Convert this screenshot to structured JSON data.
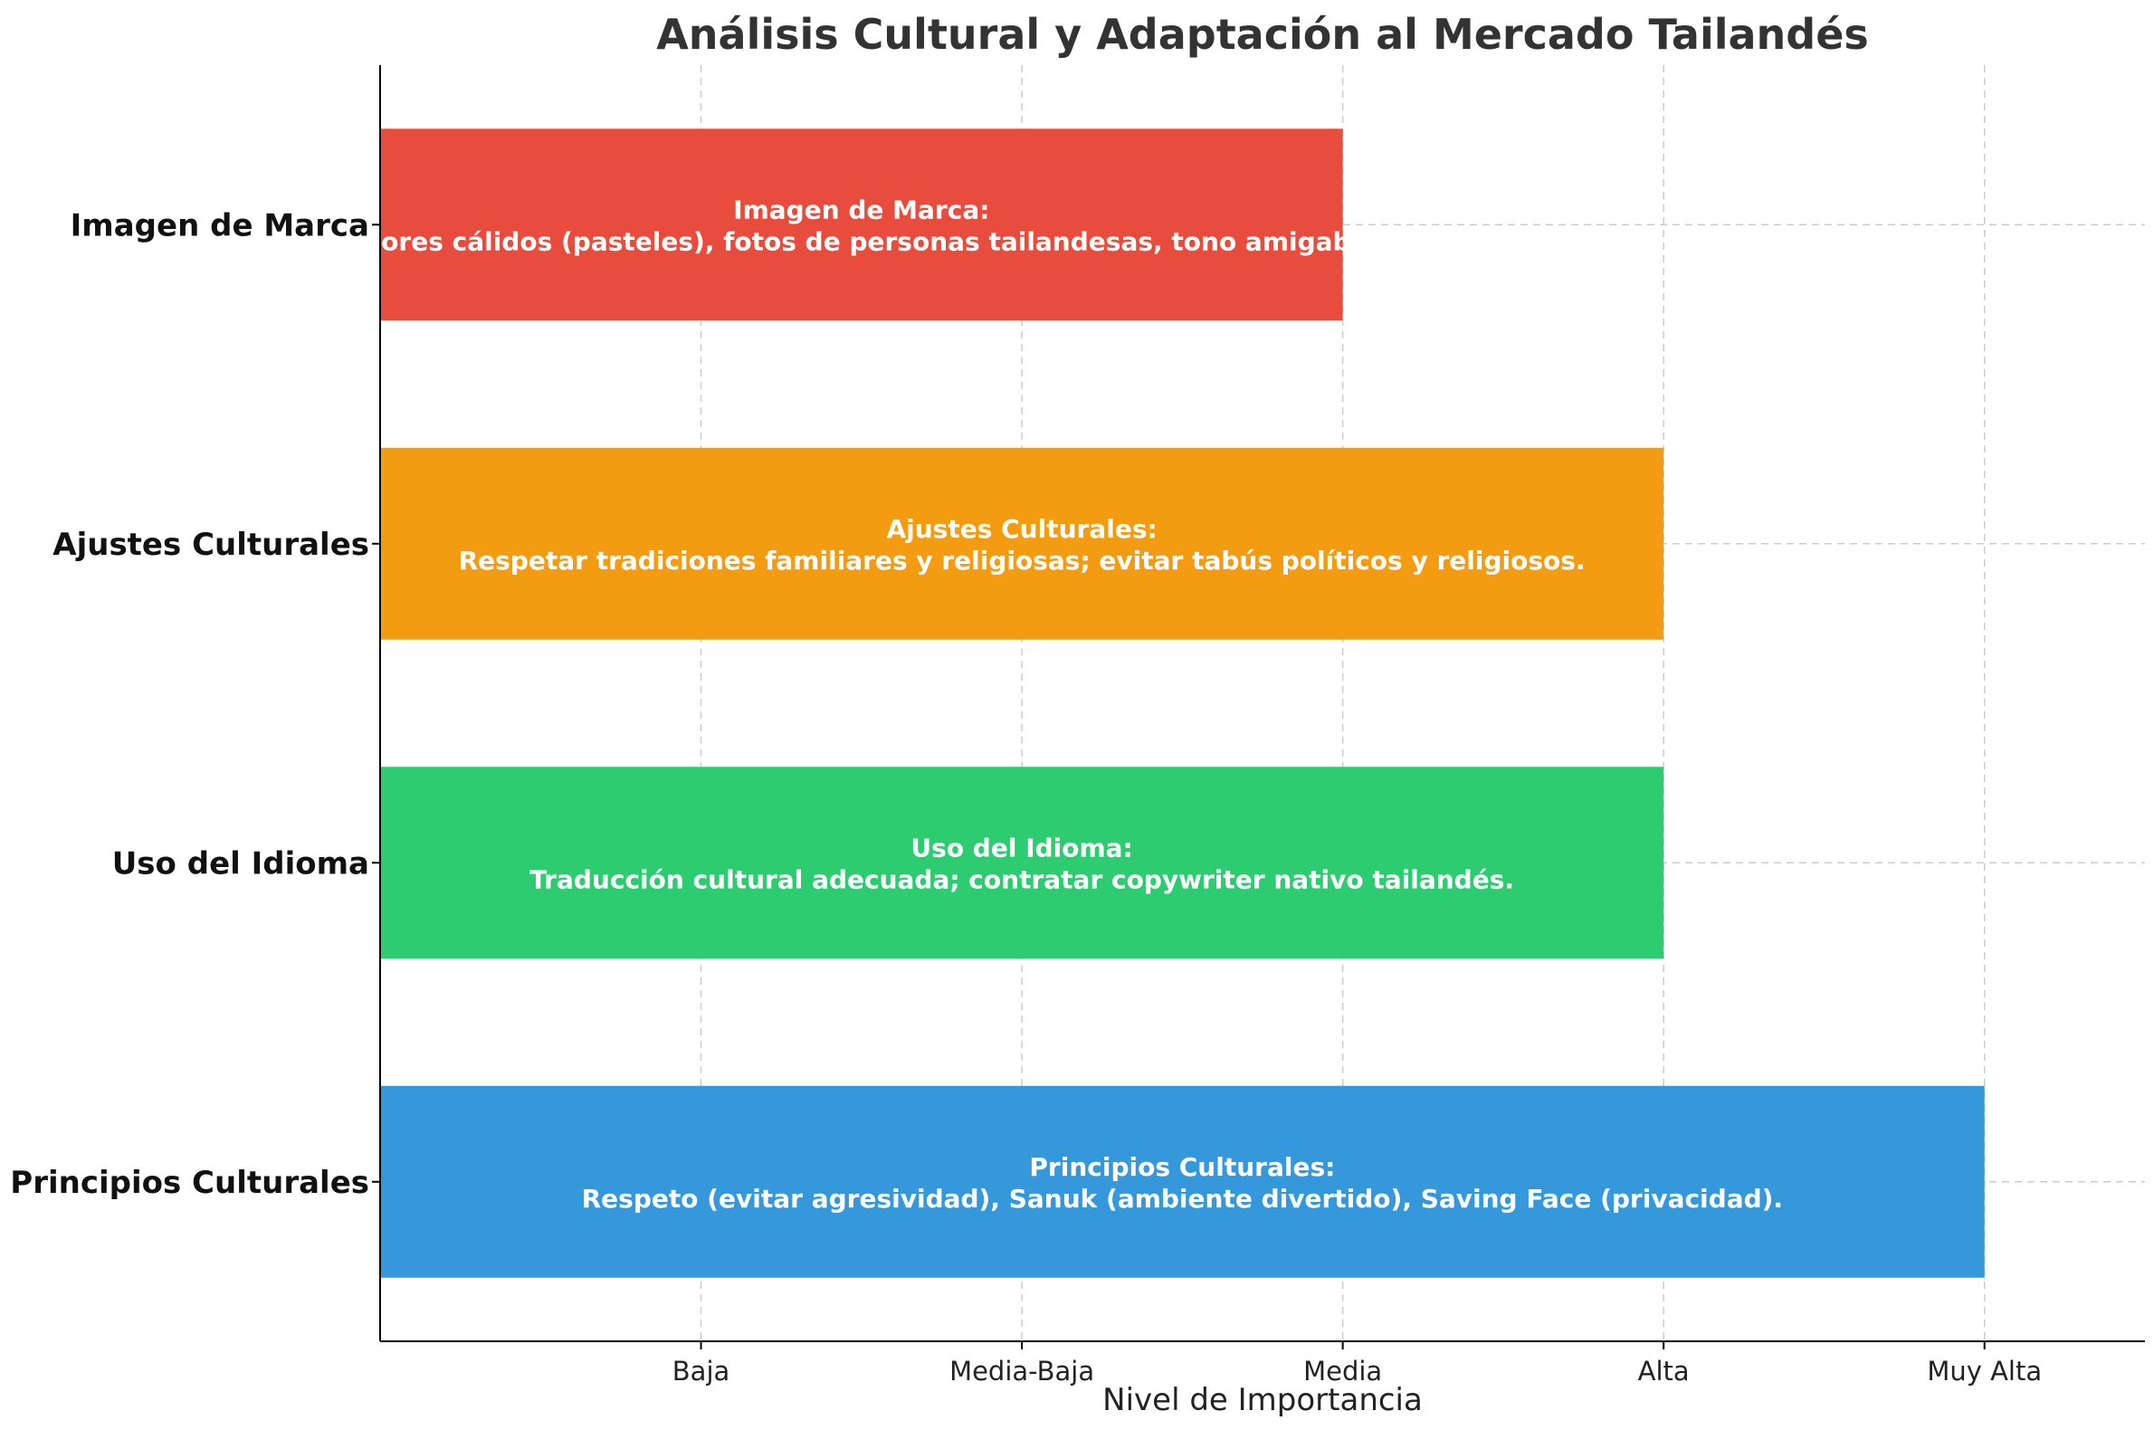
{
  "chart_data": {
    "type": "bar",
    "orientation": "horizontal",
    "title": "Análisis Cultural y Adaptación al Mercado Tailandés",
    "xlabel": "Nivel de Importancia",
    "ylabel": "",
    "x_ticks": [
      "Baja",
      "Media-Baja",
      "Media",
      "Alta",
      "Muy Alta"
    ],
    "x_tick_values": [
      1,
      2,
      3,
      4,
      5
    ],
    "xlim": [
      0,
      5.5
    ],
    "grid": true,
    "categories": [
      "Imagen de Marca",
      "Ajustes Culturales",
      "Uso del Idioma",
      "Principios Culturales"
    ],
    "values": [
      3,
      4,
      4,
      5
    ],
    "colors": [
      "#e74c3c",
      "#f39c12",
      "#2ecc71",
      "#3498db"
    ],
    "bar_labels": [
      [
        "Imagen de Marca:",
        "Colores cálidos (pasteles), fotos de personas tailandesas, tono amigable."
      ],
      [
        "Ajustes Culturales:",
        "Respetar tradiciones familiares y religiosas; evitar tabús políticos y religiosos."
      ],
      [
        "Uso del Idioma:",
        "Traducción cultural adecuada; contratar copywriter nativo tailandés."
      ],
      [
        "Principios Culturales:",
        "Respeto (evitar agresividad), Sanuk (ambiente divertido), Saving Face (privacidad)."
      ]
    ]
  }
}
